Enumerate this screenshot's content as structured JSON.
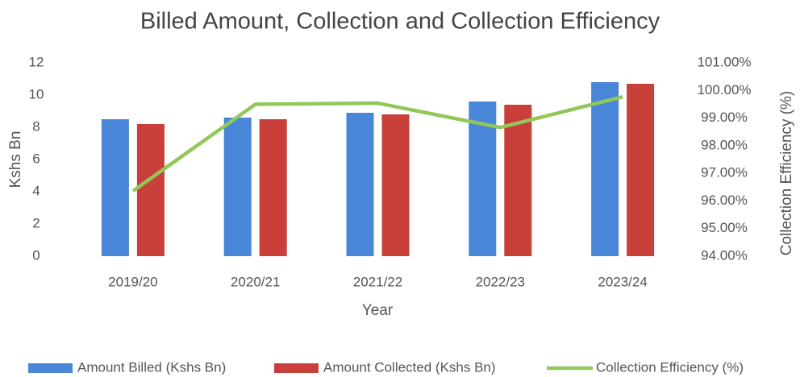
{
  "chart_data": {
    "type": "bar",
    "title": "Billed Amount, Collection and Collection Efficiency",
    "xlabel": "Year",
    "ylabel": "Kshs Bn",
    "y2label": "Collection Efficiency (%)",
    "categories": [
      "2019/20",
      "2020/21",
      "2021/22",
      "2022/23",
      "2023/24"
    ],
    "series": [
      {
        "name": "Amount Billed (Kshs Bn)",
        "color": "#4a86d8",
        "values": [
          8.5,
          8.6,
          8.9,
          9.6,
          10.8
        ]
      },
      {
        "name": "Amount Collected (Kshs Bn)",
        "color": "#c9403a",
        "values": [
          8.2,
          8.5,
          8.8,
          9.4,
          10.7
        ]
      },
      {
        "name": "Collection Efficiency (%)",
        "color": "#92c75a",
        "type": "line",
        "axis": "y2",
        "values": [
          96.36,
          99.5,
          99.54,
          98.66,
          99.77
        ]
      }
    ],
    "ylim": [
      0,
      12
    ],
    "yticks": [
      0,
      2,
      4,
      6,
      8,
      10,
      12
    ],
    "y2lim": [
      94,
      101
    ],
    "y2ticks": [
      {
        "value": 94,
        "label": "94.00%"
      },
      {
        "value": 95,
        "label": "95.00%"
      },
      {
        "value": 96,
        "label": "96.00%"
      },
      {
        "value": 97,
        "label": "97.00%"
      },
      {
        "value": 98,
        "label": "98.00%"
      },
      {
        "value": 99,
        "label": "99.00%"
      },
      {
        "value": 100,
        "label": "100.00%"
      },
      {
        "value": 101,
        "label": "101.00%"
      }
    ],
    "grid": false,
    "legend": "bottom"
  }
}
